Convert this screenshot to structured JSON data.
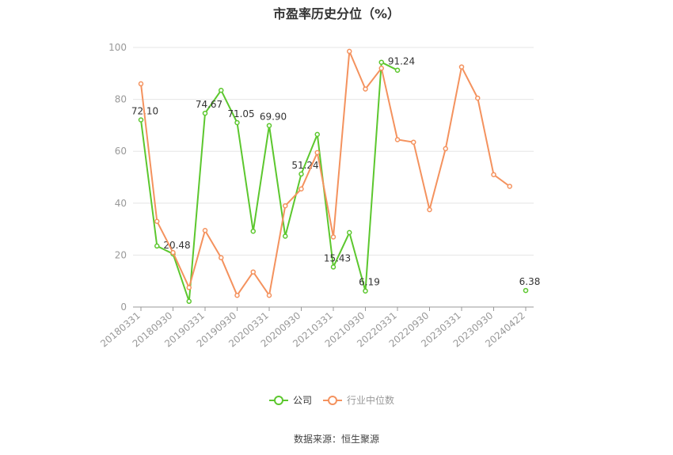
{
  "chart_data": {
    "type": "line",
    "title": "市盈率历史分位（%）",
    "source": "数据来源：恒生聚源",
    "ylim": [
      0,
      100
    ],
    "yticks": [
      "0",
      "20",
      "40",
      "60",
      "80",
      "100"
    ],
    "grid": true,
    "legend_position": "bottom-center",
    "x": [
      "20180331",
      "20180630",
      "20180930",
      "20181231",
      "20190331",
      "20190630",
      "20190930",
      "20191231",
      "20200331",
      "20200630",
      "20200930",
      "20201231",
      "20210331",
      "20210630",
      "20210930",
      "20211231",
      "20220331",
      "20220630",
      "20220930",
      "20221231",
      "20230331",
      "20230630",
      "20230930",
      "20231231",
      "20240422"
    ],
    "xtick_labels": [
      "20180331",
      "20180930",
      "20190331",
      "20190930",
      "20200331",
      "20200930",
      "20210331",
      "20210930",
      "20220331",
      "20220930",
      "20230331",
      "20230930",
      "20240422"
    ],
    "series": [
      {
        "name": "公司",
        "color": "#5cc72e",
        "values": [
          72.1,
          23.5,
          20.48,
          2.2,
          74.67,
          83.5,
          71.05,
          29.2,
          69.9,
          27.3,
          51.24,
          66.5,
          15.43,
          28.7,
          6.19,
          94.3,
          91.24,
          null,
          null,
          null,
          null,
          null,
          null,
          null,
          6.38
        ],
        "labels": [
          {
            "i": 0,
            "text": "72.10"
          },
          {
            "i": 2,
            "text": "20.48"
          },
          {
            "i": 4,
            "text": "74.67"
          },
          {
            "i": 6,
            "text": "71.05"
          },
          {
            "i": 8,
            "text": "69.90"
          },
          {
            "i": 10,
            "text": "51.24"
          },
          {
            "i": 12,
            "text": "15.43"
          },
          {
            "i": 14,
            "text": "6.19"
          },
          {
            "i": 16,
            "text": "91.24"
          },
          {
            "i": 24,
            "text": "6.38"
          }
        ]
      },
      {
        "name": "行业中位数",
        "color": "#f4925e",
        "values": [
          86.0,
          33.0,
          21.0,
          7.5,
          29.5,
          19.0,
          4.5,
          13.5,
          4.5,
          39.0,
          45.5,
          59.5,
          27.0,
          98.5,
          84.0,
          92.0,
          64.5,
          63.5,
          37.5,
          61.0,
          92.5,
          80.5,
          51.0,
          46.5,
          null
        ]
      }
    ]
  }
}
